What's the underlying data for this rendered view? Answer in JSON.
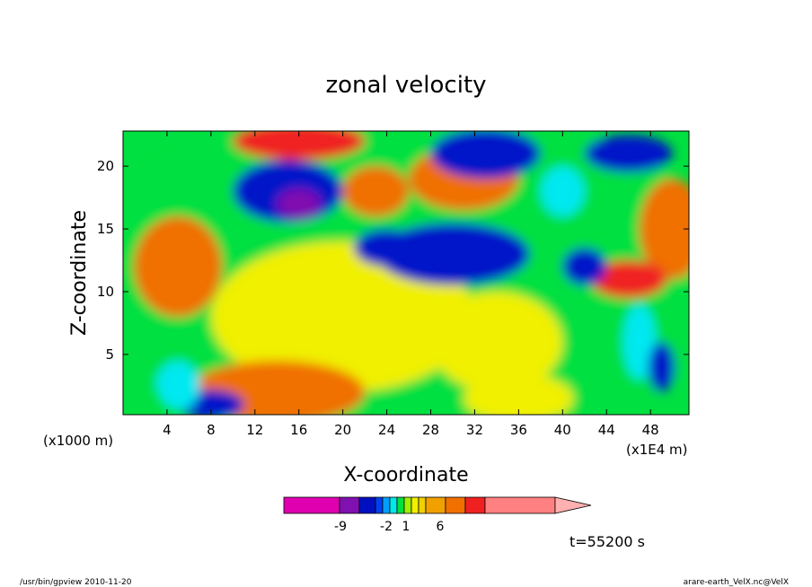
{
  "chart_data": {
    "type": "heatmap",
    "title": "zonal velocity",
    "xlabel": "X-coordinate",
    "ylabel": "Z-coordinate",
    "x_unit_left": "(x1000 m)",
    "x_unit_right": "(x1E4 m)",
    "xlim": [
      0,
      51.5
    ],
    "ylim": [
      0.2,
      22.8
    ],
    "x_ticks": [
      "4",
      "8",
      "12",
      "16",
      "20",
      "24",
      "28",
      "32",
      "36",
      "40",
      "44",
      "48"
    ],
    "y_ticks": [
      "5",
      "10",
      "15",
      "20"
    ],
    "colorbar": {
      "labels": [
        "-9",
        "-2",
        "1",
        "6"
      ],
      "colors": [
        "#e000b0",
        "#8010b0",
        "#0010c0",
        "#0040f0",
        "#00a0ff",
        "#00e8e8",
        "#00e040",
        "#a0f000",
        "#f0f000",
        "#f0d000",
        "#f0a000",
        "#f07000",
        "#f02020",
        "#ff8080",
        "#ffb0b0"
      ]
    },
    "regions": [
      {
        "level": "green",
        "cx": 26,
        "cy": 11,
        "rx": 30,
        "ry": 14
      },
      {
        "level": "yellow",
        "cx": 20,
        "cy": 8,
        "rx": 12,
        "ry": 6
      },
      {
        "level": "yellow",
        "cx": 34,
        "cy": 6,
        "rx": 6,
        "ry": 4
      },
      {
        "level": "yellow",
        "cx": 36,
        "cy": 1.5,
        "rx": 5,
        "ry": 2
      },
      {
        "level": "orange",
        "cx": 14,
        "cy": 2,
        "rx": 8,
        "ry": 2.5
      },
      {
        "level": "orange",
        "cx": 5,
        "cy": 12,
        "rx": 4,
        "ry": 4
      },
      {
        "level": "orange",
        "cx": 23,
        "cy": 18,
        "rx": 3,
        "ry": 2
      },
      {
        "level": "orange",
        "cx": 31,
        "cy": 19,
        "rx": 5,
        "ry": 2.5
      },
      {
        "level": "orange",
        "cx": 50,
        "cy": 15,
        "rx": 3,
        "ry": 4
      },
      {
        "level": "red",
        "cx": 46,
        "cy": 11,
        "rx": 3.5,
        "ry": 1.5
      },
      {
        "level": "red",
        "cx": 16,
        "cy": 22,
        "rx": 6,
        "ry": 1.5
      },
      {
        "level": "blue",
        "cx": 15,
        "cy": 18,
        "rx": 5,
        "ry": 2.5
      },
      {
        "level": "purple",
        "cx": 16,
        "cy": 17,
        "rx": 2,
        "ry": 1.2
      },
      {
        "level": "blue",
        "cx": 30,
        "cy": 13,
        "rx": 7,
        "ry": 2.5
      },
      {
        "level": "blue",
        "cx": 24,
        "cy": 13.5,
        "rx": 3,
        "ry": 1.5
      },
      {
        "level": "blue",
        "cx": 33,
        "cy": 21,
        "rx": 5,
        "ry": 2
      },
      {
        "level": "blue",
        "cx": 42,
        "cy": 12,
        "rx": 2,
        "ry": 1.5
      },
      {
        "level": "blue",
        "cx": 46,
        "cy": 21,
        "rx": 4,
        "ry": 1.5
      },
      {
        "level": "blue",
        "cx": 8,
        "cy": 1,
        "rx": 3,
        "ry": 1.2
      },
      {
        "level": "cyan",
        "cx": 5,
        "cy": 2.5,
        "rx": 2,
        "ry": 2
      },
      {
        "level": "cyan",
        "cx": 47,
        "cy": 6,
        "rx": 1.5,
        "ry": 3
      },
      {
        "level": "blue",
        "cx": 49,
        "cy": 4,
        "rx": 1.2,
        "ry": 2
      },
      {
        "level": "cyan",
        "cx": 40,
        "cy": 18,
        "rx": 2,
        "ry": 2
      }
    ]
  },
  "footer": {
    "time_label": "t=55200 s",
    "left_note": "/usr/bin/gpview  2010-11-20",
    "right_note": "arare-earth_VelX.nc@VelX"
  }
}
